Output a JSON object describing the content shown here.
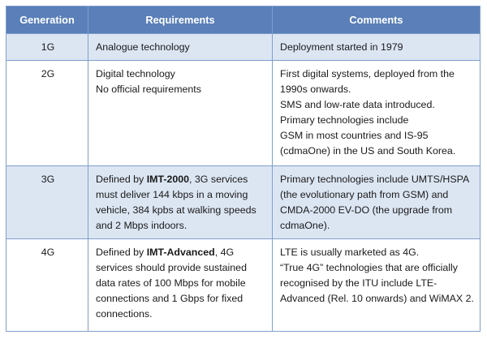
{
  "table": {
    "header": [
      "Generation",
      "Requirements",
      "Comments"
    ],
    "rows": [
      {
        "generation": "1G",
        "requirements": [
          "Analogue technology"
        ],
        "comments": [
          "Deployment started in 1979"
        ]
      },
      {
        "generation": "2G",
        "requirements": [
          "Digital technology",
          "No official requirements"
        ],
        "comments": [
          "First digital systems, deployed from the 1990s onwards.",
          "SMS and low-rate data introduced.",
          "Primary technologies include",
          "GSM in most countries and IS-95 (cdmaOne) in the US and South Korea."
        ]
      },
      {
        "generation": "3G",
        "requirements": {
          "before": "Defined by ",
          "bold": "IMT-2000",
          "after": ", 3G services must deliver 144 kbps in a moving vehicle, 384 kpbs at walking speeds and 2 Mbps indoors."
        },
        "comments": [
          "Primary technologies include UMTS/HSPA (the evolutionary path from GSM) and CMDA-2000 EV-DO (the upgrade from cdmaOne)."
        ]
      },
      {
        "generation": "4G",
        "requirements": {
          "before": "Defined by ",
          "bold": "IMT-Advanced",
          "after": ", 4G services should provide sustained data rates of 100 Mbps for mobile connections and 1 Gbps for fixed connections."
        },
        "comments": [
          "LTE is usually marketed as 4G.",
          "“True 4G” technologies that are officially recognised by the ITU include LTE-Advanced (Rel. 10 onwards) and WiMAX 2."
        ]
      }
    ]
  }
}
